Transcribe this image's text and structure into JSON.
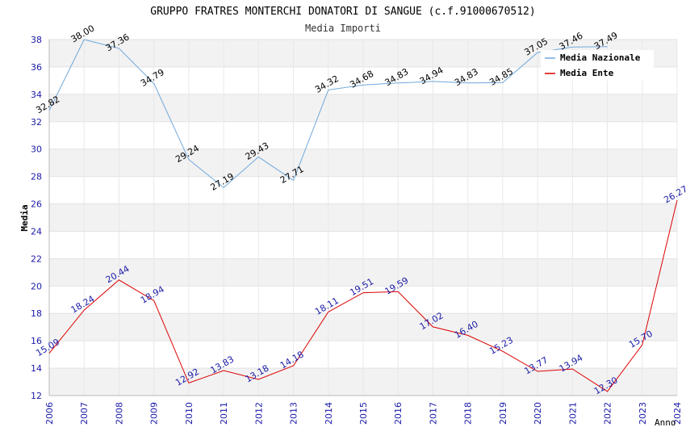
{
  "chart_data": {
    "type": "line",
    "title": "GRUPPO FRATRES MONTERCHI DONATORI DI SANGUE (c.f.91000670512)",
    "subtitle": "Media Importi",
    "xlabel": "Anno",
    "ylabel": "Media",
    "ylim": [
      12,
      38
    ],
    "ytick_step": 2,
    "grid": "horizontal-bands",
    "legend_position": "top-right",
    "x": [
      2006,
      2007,
      2008,
      2009,
      2010,
      2011,
      2012,
      2013,
      2014,
      2015,
      2016,
      2017,
      2018,
      2019,
      2020,
      2021,
      2022,
      2023,
      2024
    ],
    "series": [
      {
        "name": "Media Nazionale",
        "color": "#6fa8dc",
        "label_color": "#000000",
        "values": [
          32.82,
          38.0,
          37.36,
          34.79,
          29.24,
          27.19,
          29.43,
          27.71,
          34.32,
          34.68,
          34.83,
          34.94,
          34.83,
          34.85,
          37.05,
          37.46,
          37.49,
          null,
          null
        ],
        "labels": [
          "32.82",
          "38.00",
          "37.36",
          "34.79",
          "29.24",
          "27.19",
          "29.43",
          "27.71",
          "34.32",
          "34.68",
          "34.83",
          "34.94",
          "34.83",
          "34.85",
          "37.05",
          "37.46",
          "37.49",
          "",
          ""
        ]
      },
      {
        "name": "Media Ente",
        "color": "#dd0000",
        "label_color": "#1a1aa8",
        "values": [
          15.09,
          18.24,
          20.44,
          18.94,
          12.92,
          13.83,
          13.18,
          14.18,
          18.11,
          19.51,
          19.59,
          17.02,
          16.4,
          15.23,
          13.77,
          13.94,
          12.3,
          15.7,
          26.27
        ],
        "labels": [
          "15.09",
          "18.24",
          "20.44",
          "18.94",
          "12.92",
          "13.83",
          "13.18",
          "14.18",
          "18.11",
          "19.51",
          "19.59",
          "17.02",
          "16.40",
          "15.23",
          "13.77",
          "13.94",
          "12.30",
          "15.70",
          "26.27"
        ]
      }
    ]
  }
}
